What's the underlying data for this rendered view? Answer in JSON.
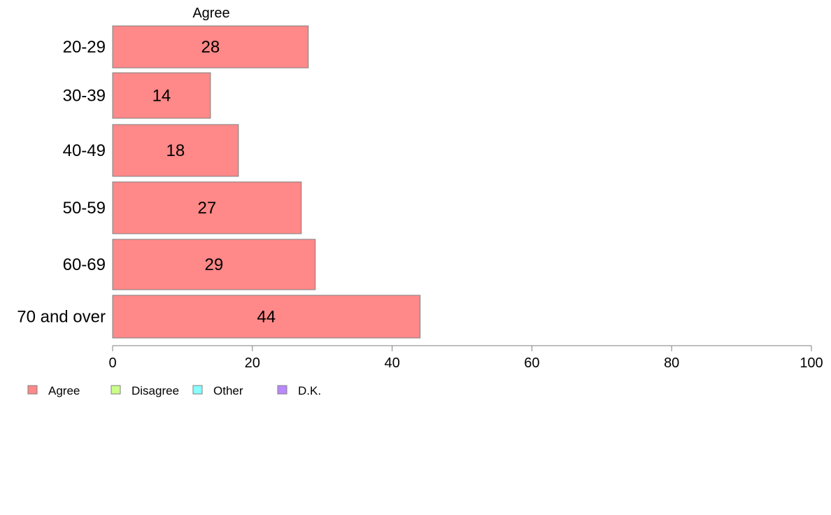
{
  "chart_data": {
    "type": "bar",
    "orientation": "horizontal",
    "title": "Agree",
    "categories": [
      "20-29",
      "30-39",
      "40-49",
      "50-59",
      "60-69",
      "70 and over"
    ],
    "series": [
      {
        "name": "Agree",
        "values": [
          28,
          14,
          18,
          27,
          29,
          44
        ],
        "color": "#ff8888"
      }
    ],
    "data_labels": [
      "28",
      "14",
      "18",
      "27",
      "29",
      "44"
    ],
    "xlim": [
      0,
      100
    ],
    "x_ticks": [
      0,
      20,
      40,
      60,
      80,
      100
    ],
    "x_tick_labels": [
      "0",
      "20",
      "40",
      "60",
      "80",
      "100"
    ],
    "grid": false,
    "legend": {
      "placement": "bottom-left",
      "entries": [
        {
          "label": "Agree",
          "color": "#ff8888"
        },
        {
          "label": "Disagree",
          "color": "#ccff88"
        },
        {
          "label": "Other",
          "color": "#88ffff"
        },
        {
          "label": "D.K.",
          "color": "#bb88ff"
        }
      ]
    }
  }
}
